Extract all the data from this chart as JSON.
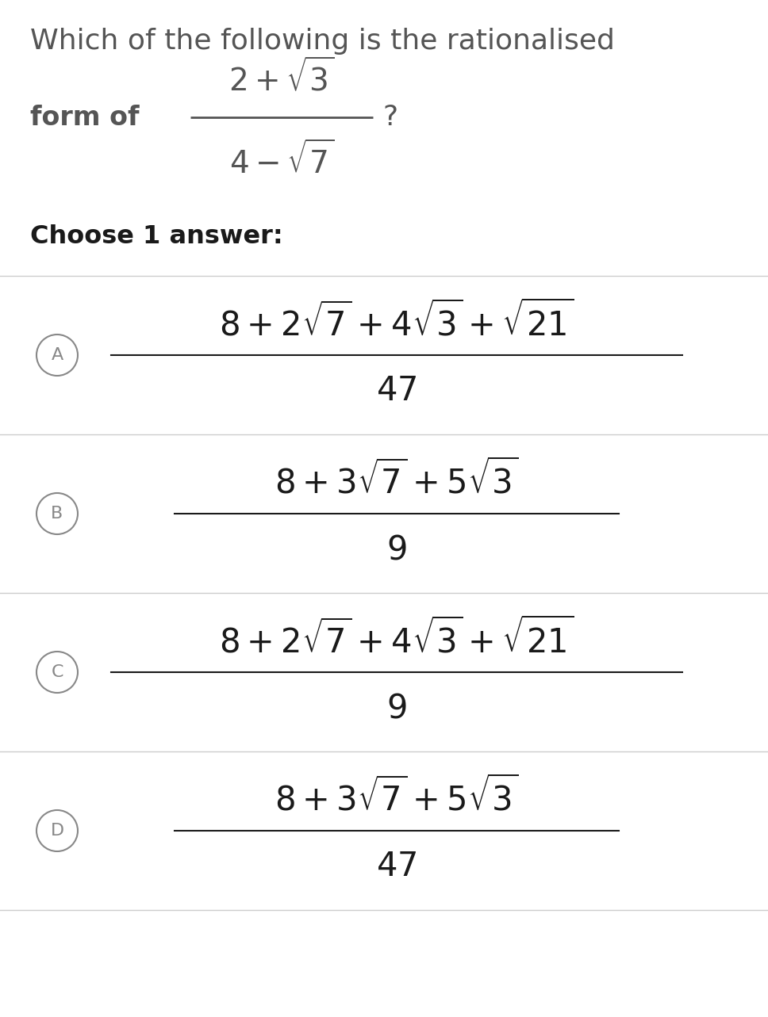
{
  "background_color": "#ffffff",
  "title_line1": "Which of the following is the rationalised",
  "title_color": "#555555",
  "option_color": "#1a1a1a",
  "circle_color": "#888888",
  "line_color": "#cccccc",
  "options": [
    {
      "label": "A",
      "numerator": "8 + 2\\sqrt{7} + 4\\sqrt{3} + \\sqrt{21}",
      "denominator": "47"
    },
    {
      "label": "B",
      "numerator": "8 + 3\\sqrt{7} + 5\\sqrt{3}",
      "denominator": "9"
    },
    {
      "label": "C",
      "numerator": "8 + 2\\sqrt{7} + 4\\sqrt{3} + \\sqrt{21}",
      "denominator": "9"
    },
    {
      "label": "D",
      "numerator": "8 + 3\\sqrt{7} + 5\\sqrt{3}",
      "denominator": "47"
    }
  ]
}
